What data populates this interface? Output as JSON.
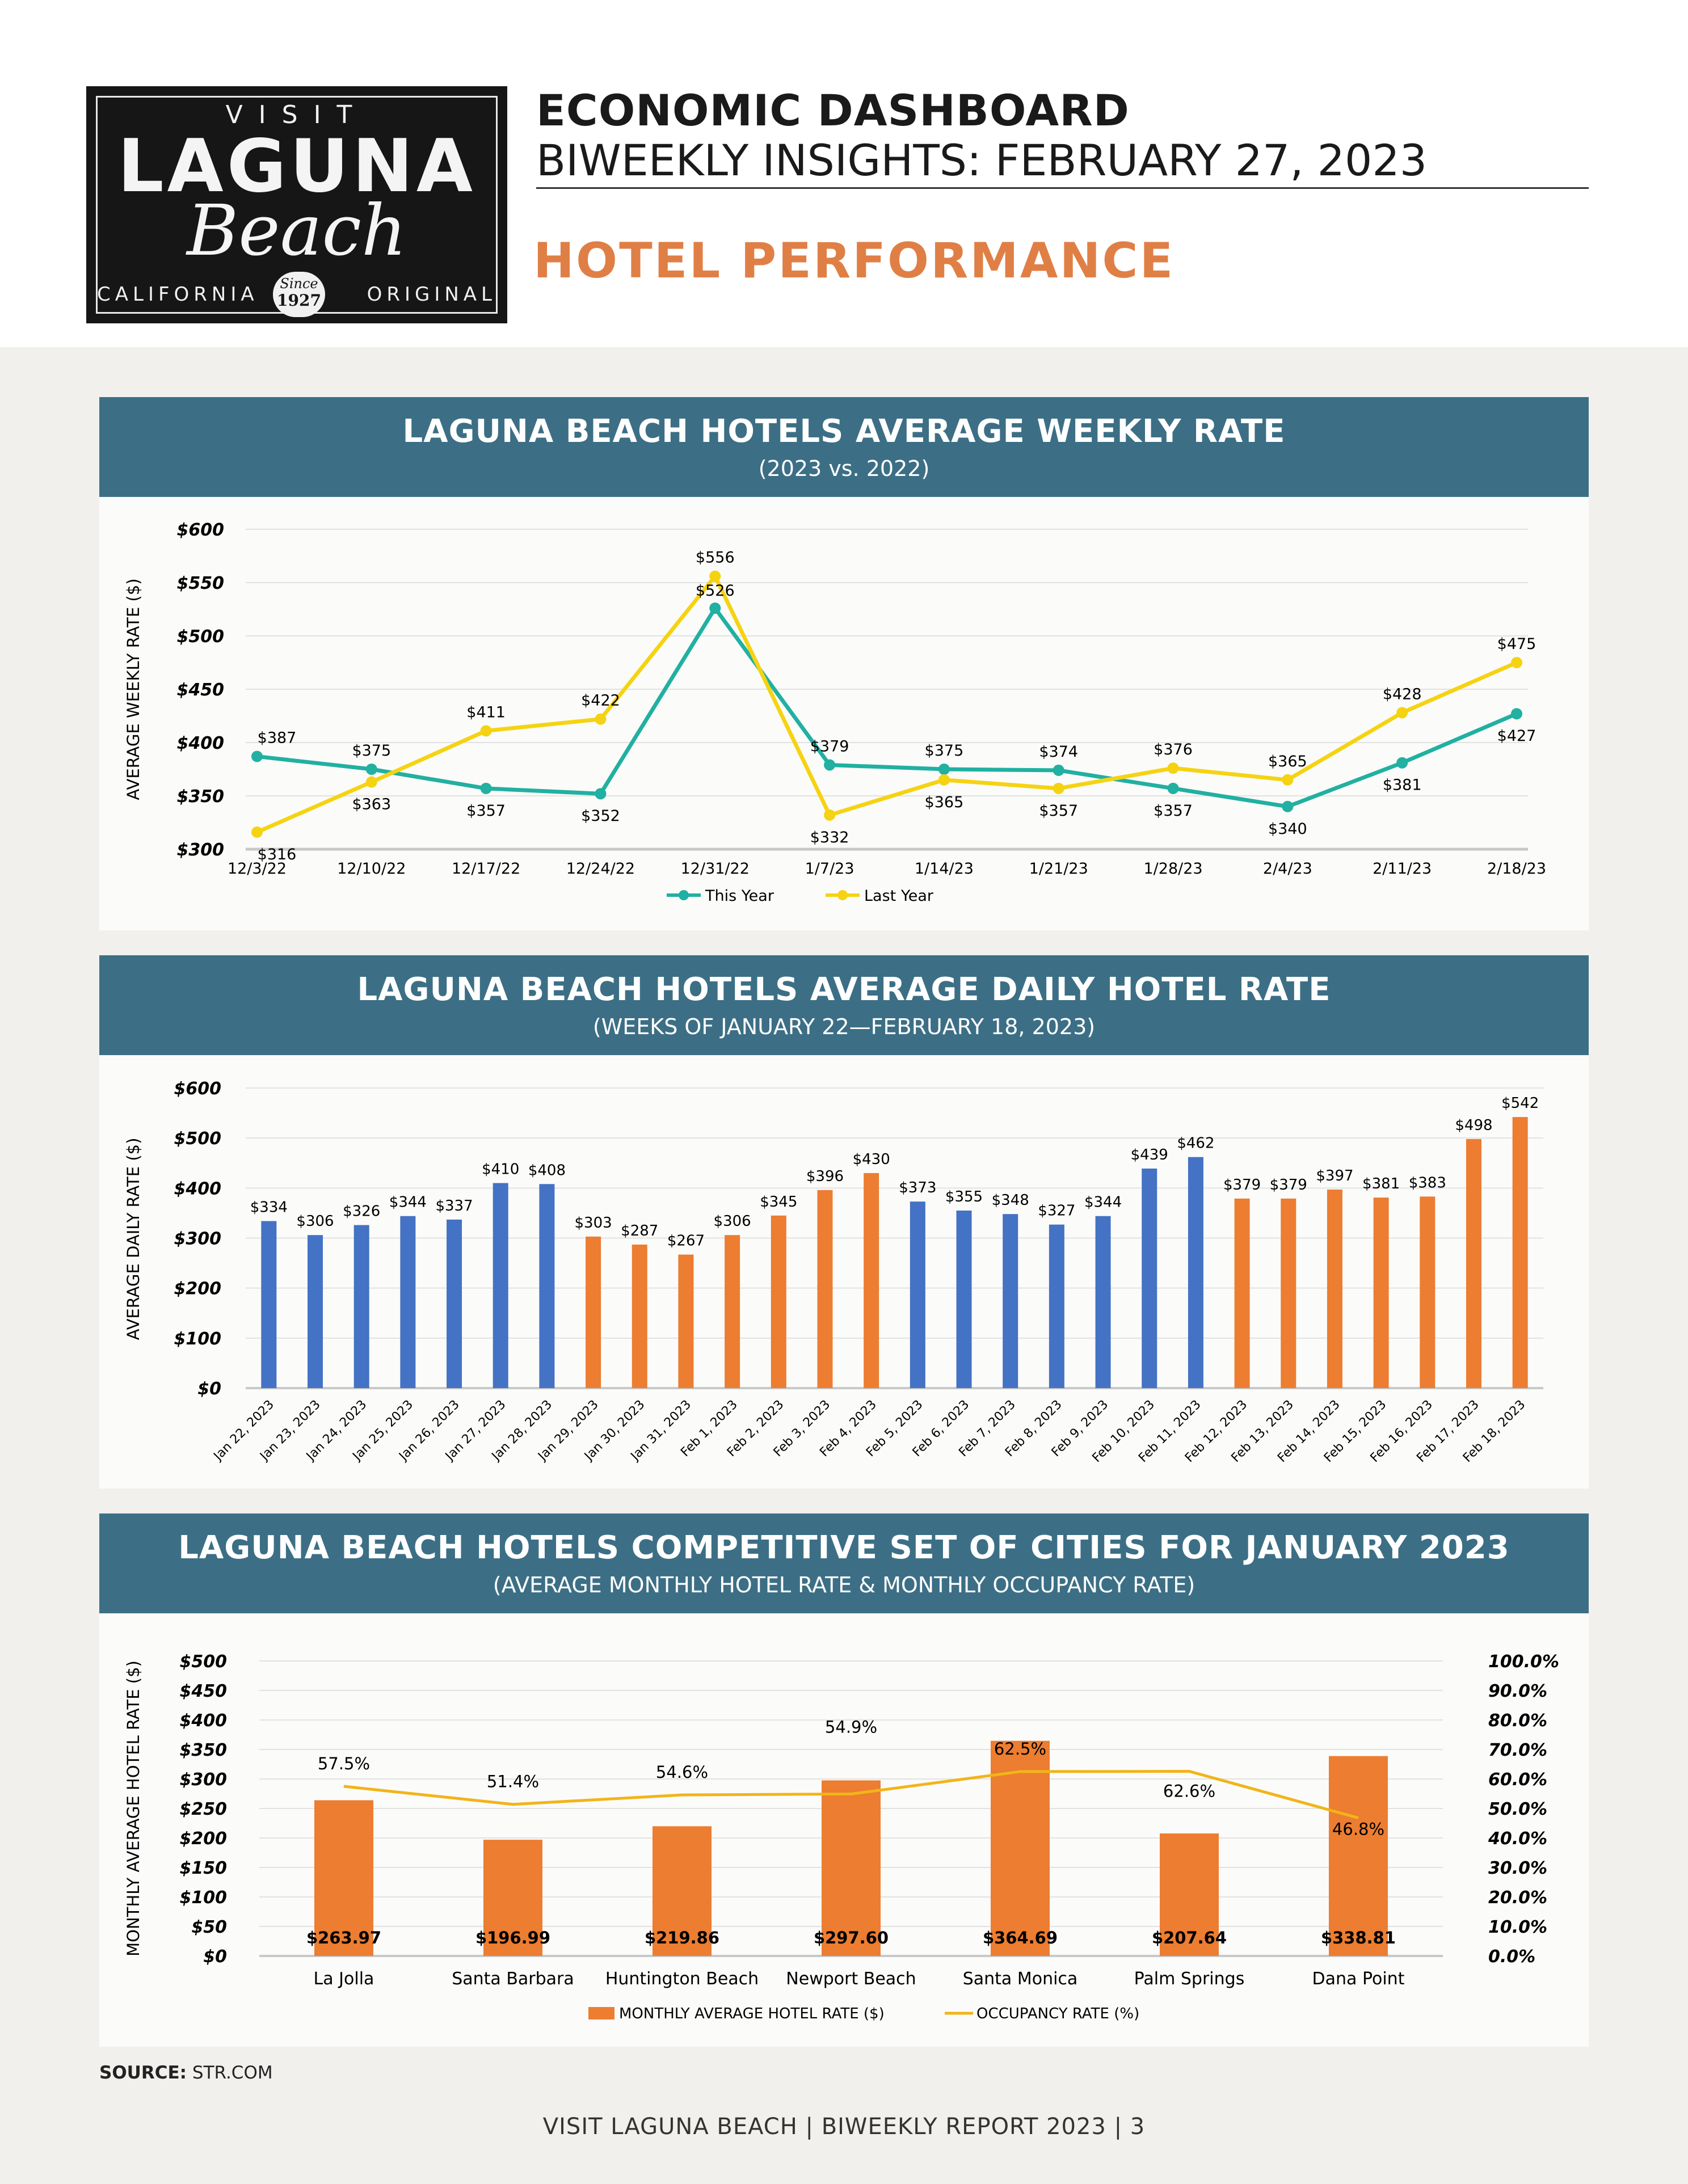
{
  "logo": {
    "visit": "VISIT",
    "laguna": "LAGUNA",
    "beach": "Beach",
    "california": "CALIFORNIA",
    "original": "ORIGINAL",
    "since": "Since",
    "year": "1927"
  },
  "header": {
    "title": "ECONOMIC DASHBOARD",
    "subtitle": "BIWEEKLY INSIGHTS: FEBRUARY 27, 2023",
    "section": "HOTEL PERFORMANCE"
  },
  "colors": {
    "panel_bar": "#3c6f85",
    "this_year": "#21b0a1",
    "last_year": "#f5d312",
    "bar_blue": "#4472c4",
    "bar_orange": "#ec7d31",
    "occupancy_line": "#f2b418",
    "section_accent": "#e07f45"
  },
  "panels": [
    {
      "title": "LAGUNA BEACH HOTELS AVERAGE WEEKLY RATE",
      "subtitle": "(2023 vs. 2022)"
    },
    {
      "title": "LAGUNA BEACH HOTELS AVERAGE DAILY HOTEL RATE",
      "subtitle": "(WEEKS OF JANUARY 22—FEBRUARY 18, 2023)"
    },
    {
      "title": "LAGUNA BEACH HOTELS COMPETITIVE SET OF CITIES FOR JANUARY 2023",
      "subtitle": "(AVERAGE MONTHLY HOTEL RATE & MONTHLY OCCUPANCY RATE)"
    }
  ],
  "chart_data": [
    {
      "type": "line",
      "ylabel": "AVERAGE WEEKLY RATE ($)",
      "ylim": [
        300,
        600
      ],
      "yticks": [
        "$300",
        "$350",
        "$400",
        "$450",
        "$500",
        "$550",
        "$600"
      ],
      "categories": [
        "12/3/22",
        "12/10/22",
        "12/17/22",
        "12/24/22",
        "12/31/22",
        "1/7/23",
        "1/14/23",
        "1/21/23",
        "1/28/23",
        "2/4/23",
        "2/11/23",
        "2/18/23"
      ],
      "series": [
        {
          "name": "This Year",
          "values": [
            387,
            375,
            357,
            352,
            526,
            379,
            375,
            374,
            357,
            340,
            381,
            427
          ],
          "labels": [
            "$387",
            "$375",
            "$357",
            "$352",
            "$526",
            "$379",
            "$375",
            "$374",
            "$357",
            "$340",
            "$381",
            "$427"
          ]
        },
        {
          "name": "Last Year",
          "values": [
            316,
            363,
            411,
            422,
            556,
            332,
            365,
            357,
            376,
            365,
            428,
            475
          ],
          "labels": [
            "$316",
            "$363",
            "$411",
            "$422",
            "$556",
            "$332",
            "$365",
            "$357",
            "$376",
            "$365",
            "$428",
            "$475"
          ]
        }
      ],
      "grid": true,
      "legend": "bottom"
    },
    {
      "type": "bar",
      "ylabel": "AVERAGE DAILY RATE ($)",
      "ylim": [
        0,
        600
      ],
      "yticks": [
        "$0",
        "$100",
        "$200",
        "$300",
        "$400",
        "$500",
        "$600"
      ],
      "categories": [
        "Jan 22, 2023",
        "Jan 23, 2023",
        "Jan 24, 2023",
        "Jan 25, 2023",
        "Jan 26, 2023",
        "Jan 27, 2023",
        "Jan 28, 2023",
        "Jan 29, 2023",
        "Jan 30, 2023",
        "Jan 31, 2023",
        "Feb 1, 2023",
        "Feb 2, 2023",
        "Feb 3, 2023",
        "Feb 4, 2023",
        "Feb 5, 2023",
        "Feb 6, 2023",
        "Feb 7, 2023",
        "Feb 8, 2023",
        "Feb 9, 2023",
        "Feb 10, 2023",
        "Feb 11, 2023",
        "Feb 12, 2023",
        "Feb 13, 2023",
        "Feb 14, 2023",
        "Feb 15, 2023",
        "Feb 16, 2023",
        "Feb 17, 2023",
        "Feb 18, 2023"
      ],
      "values": [
        334,
        306,
        326,
        344,
        337,
        410,
        408,
        303,
        287,
        267,
        306,
        345,
        396,
        430,
        373,
        355,
        348,
        327,
        344,
        439,
        462,
        379,
        379,
        397,
        381,
        383,
        498,
        542
      ],
      "labels": [
        "$334",
        "$306",
        "$326",
        "$344",
        "$337",
        "$410",
        "$408",
        "$303",
        "$287",
        "$267",
        "$306",
        "$345",
        "$396",
        "$430",
        "$373",
        "$355",
        "$348",
        "$327",
        "$344",
        "$439",
        "$462",
        "$379",
        "$379",
        "$397",
        "$381",
        "$383",
        "$498",
        "$542"
      ],
      "bar_colors": [
        "blue",
        "blue",
        "blue",
        "blue",
        "blue",
        "blue",
        "blue",
        "orange",
        "orange",
        "orange",
        "orange",
        "orange",
        "orange",
        "orange",
        "blue",
        "blue",
        "blue",
        "blue",
        "blue",
        "blue",
        "blue",
        "orange",
        "orange",
        "orange",
        "orange",
        "orange",
        "orange",
        "orange"
      ],
      "grid": true
    },
    {
      "type": "bar",
      "ylabel": "MONTHLY AVERAGE HOTEL RATE ($)",
      "ylim": [
        0,
        500
      ],
      "y2lim": [
        0,
        100
      ],
      "yticks": [
        "$0",
        "$50",
        "$100",
        "$150",
        "$200",
        "$250",
        "$300",
        "$350",
        "$400",
        "$450",
        "$500"
      ],
      "y2ticks": [
        "0.0%",
        "10.0%",
        "20.0%",
        "30.0%",
        "40.0%",
        "50.0%",
        "60.0%",
        "70.0%",
        "80.0%",
        "90.0%",
        "100.0%"
      ],
      "categories": [
        "La Jolla",
        "Santa Barbara",
        "Huntington Beach",
        "Newport Beach",
        "Santa Monica",
        "Palm Springs",
        "Dana Point"
      ],
      "series": [
        {
          "name": "MONTHLY AVERAGE HOTEL RATE ($)",
          "values": [
            263.97,
            196.99,
            219.86,
            297.6,
            364.69,
            207.64,
            338.81
          ],
          "labels": [
            "$263.97",
            "$196.99",
            "$219.86",
            "$297.60",
            "$364.69",
            "$207.64",
            "$338.81"
          ]
        },
        {
          "name": "OCCUPANCY RATE (%)",
          "values": [
            57.5,
            51.4,
            54.6,
            54.9,
            62.5,
            62.6,
            46.8
          ],
          "labels": [
            "57.5%",
            "51.4%",
            "54.6%",
            "54.9%",
            "62.5%",
            "62.6%",
            "46.8%"
          ]
        }
      ],
      "grid": true,
      "legend": "bottom"
    }
  ],
  "source": {
    "label": "SOURCE:",
    "value": "STR.COM"
  },
  "footer": "VISIT LAGUNA BEACH  |  BIWEEKLY REPORT 2023  |  3"
}
